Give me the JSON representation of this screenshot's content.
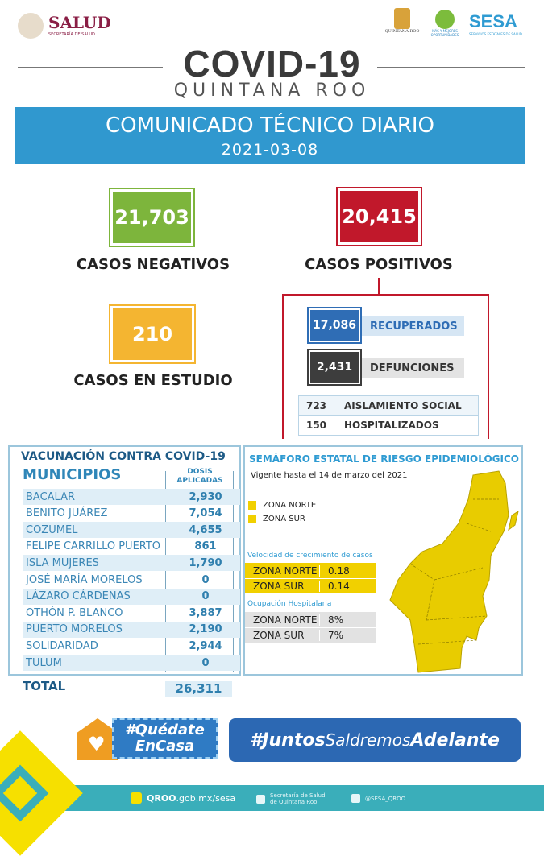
{
  "header": {
    "salud": "SALUD",
    "salud_sub": "SECRETARÍA DE SALUD",
    "qroo": "QUINTANA ROO",
    "mas": "MÁS Y MEJORES OPORTUNIDADES",
    "sesa": "SESA",
    "sesa_sub": "SERVICIOS ESTATALES DE SALUD",
    "title": "COVID-19",
    "subtitle": "QUINTANA ROO"
  },
  "banner": {
    "title": "COMUNICADO TÉCNICO DIARIO",
    "date": "2021-03-08"
  },
  "stats": {
    "negativos": {
      "value": "21,703",
      "label": "CASOS NEGATIVOS",
      "color": "#7db53c"
    },
    "positivos": {
      "value": "20,415",
      "label": "CASOS POSITIVOS",
      "color": "#c1182b"
    },
    "estudio": {
      "value": "210",
      "label": "CASOS EN ESTUDIO",
      "color": "#f4b531"
    },
    "recuperados": {
      "value": "17,086",
      "label": "RECUPERADOS",
      "color": "#2f6db5"
    },
    "defunciones": {
      "value": "2,431",
      "label": "DEFUNCIONES",
      "color": "#3d3d3d"
    },
    "rows": [
      {
        "value": "723",
        "label": "AISLAMIENTO SOCIAL"
      },
      {
        "value": "150",
        "label": "HOSPITALIZADOS"
      }
    ]
  },
  "vacunacion": {
    "title": "VACUNACIÓN CONTRA COVID-19",
    "col1": "MUNICIPIOS",
    "col2a": "DOSIS",
    "col2b": "APLICADAS",
    "rows": [
      {
        "m": "BACALAR",
        "d": "2,930"
      },
      {
        "m": "BENITO JUÁREZ",
        "d": "7,054"
      },
      {
        "m": "COZUMEL",
        "d": "4,655"
      },
      {
        "m": "FELIPE CARRILLO PUERTO",
        "d": "861"
      },
      {
        "m": "ISLA MUJERES",
        "d": "1,790"
      },
      {
        "m": "JOSÉ MARÍA MORELOS",
        "d": "0"
      },
      {
        "m": "LÁZARO CÁRDENAS",
        "d": "0"
      },
      {
        "m": "OTHÓN P. BLANCO",
        "d": "3,887"
      },
      {
        "m": "PUERTO MORELOS",
        "d": "2,190"
      },
      {
        "m": "SOLIDARIDAD",
        "d": "2,944"
      },
      {
        "m": "TULUM",
        "d": "0"
      }
    ],
    "total_label": "TOTAL",
    "total": "26,311"
  },
  "semaforo": {
    "title": "SEMÁFORO ESTATAL DE RIESGO EPIDEMIOLÓGICO",
    "vigente": "Vigente hasta el 14 de marzo del 2021",
    "legend": [
      {
        "label": "ZONA NORTE",
        "color": "#f1d000"
      },
      {
        "label": "ZONA SUR",
        "color": "#f1d000"
      }
    ],
    "velocidad_title": "Velocidad de crecimiento de casos",
    "velocidad": [
      {
        "zona": "ZONA NORTE",
        "v": "0.18"
      },
      {
        "zona": "ZONA SUR",
        "v": "0.14"
      }
    ],
    "ocupacion_title": "Ocupación Hospitalaria",
    "ocupacion": [
      {
        "zona": "ZONA NORTE",
        "v": "8%"
      },
      {
        "zona": "ZONA SUR",
        "v": "7%"
      }
    ],
    "map_color": "#e8cc00"
  },
  "footer": {
    "quedate1": "#Quédate",
    "quedate2": "EnCasa",
    "juntos1": "#Juntos",
    "juntos2": "Saldremos",
    "juntos3": "Adelante",
    "web_bold": "QROO",
    "web": ".gob.mx/sesa",
    "fb1": "Secretaría de Salud",
    "fb2": "de Quintana Roo",
    "tw": "@SESA_QROO"
  }
}
